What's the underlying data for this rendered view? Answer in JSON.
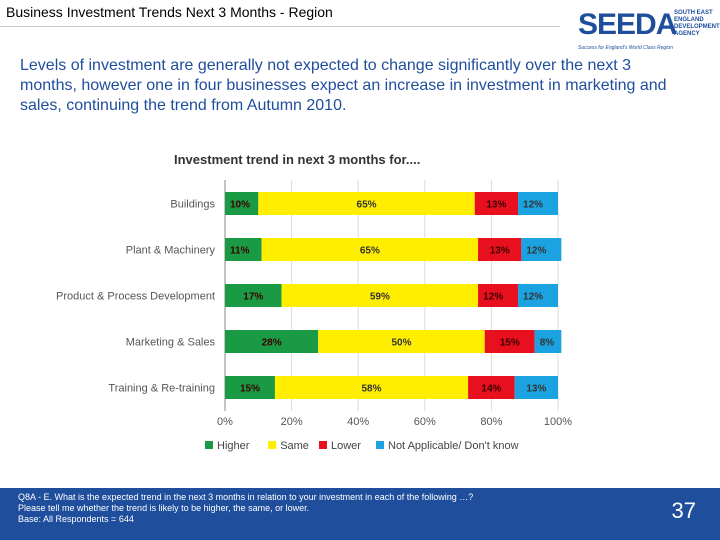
{
  "header": {
    "title": "Business Investment Trends Next 3 Months - Region"
  },
  "logo": {
    "word": "SEEDA",
    "side_lines": [
      "SOUTH EAST",
      "ENGLAND",
      "DEVELOPMENT",
      "AGENCY"
    ],
    "tagline": "Success for England's World Class Region"
  },
  "intro": {
    "text": "Levels of investment are generally not expected to change significantly over the next 3 months, however one in four businesses expect an increase in investment in marketing and sales, continuing the trend from Autumn 2010."
  },
  "colors": {
    "higher": "#1a9a44",
    "same": "#ffee00",
    "lower": "#e8101e",
    "na": "#1aa3e0",
    "brand": "#1f4e9c"
  },
  "chart_data": {
    "type": "bar",
    "orientation": "horizontal-stacked-100",
    "title": "Investment trend in next 3 months for....",
    "categories": [
      "Buildings",
      "Plant & Machinery",
      "Product & Process Development",
      "Marketing & Sales",
      "Training & Re-training"
    ],
    "series": [
      {
        "name": "Higher",
        "color_key": "higher",
        "values": [
          10,
          11,
          17,
          28,
          15
        ]
      },
      {
        "name": "Same",
        "color_key": "same",
        "values": [
          65,
          65,
          59,
          50,
          58
        ]
      },
      {
        "name": "Lower",
        "color_key": "lower",
        "values": [
          13,
          13,
          12,
          15,
          14
        ]
      },
      {
        "name": "Not Applicable/ Don't know",
        "color_key": "na",
        "values": [
          12,
          12,
          12,
          8,
          13
        ]
      }
    ],
    "xlim": [
      0,
      100
    ],
    "xticks": [
      "0%",
      "20%",
      "40%",
      "60%",
      "80%",
      "100%"
    ],
    "xtick_values": [
      0,
      20,
      40,
      60,
      80,
      100
    ],
    "legend_position": "bottom"
  },
  "footer": {
    "lines": [
      "Q8A - E. What is  the expected trend in the next 3 months in relation to your investment in each of the following …?",
      "Please tell me whether the trend is likely to be higher, the same, or lower.",
      "Base: All Respondents = 644"
    ],
    "page_number": "37"
  }
}
